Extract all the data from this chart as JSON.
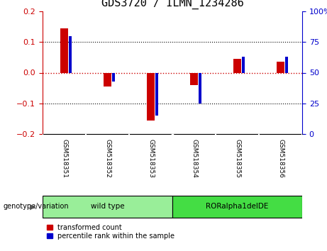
{
  "title": "GDS3720 / ILMN_1234286",
  "samples": [
    "GSM518351",
    "GSM518352",
    "GSM518353",
    "GSM518354",
    "GSM518355",
    "GSM518356"
  ],
  "red_values": [
    0.145,
    -0.045,
    -0.155,
    -0.04,
    0.045,
    0.035
  ],
  "blue_pct": [
    80,
    43,
    15,
    25,
    63,
    63
  ],
  "ylim": [
    -0.2,
    0.2
  ],
  "yticks_left": [
    -0.2,
    -0.1,
    0.0,
    0.1,
    0.2
  ],
  "yticks_right": [
    0,
    25,
    50,
    75,
    100
  ],
  "groups": [
    {
      "label": "wild type",
      "indices": [
        0,
        1,
        2
      ],
      "color": "#99EE99"
    },
    {
      "label": "RORalpha1delDE",
      "indices": [
        3,
        4,
        5
      ],
      "color": "#44DD44"
    }
  ],
  "genotype_label": "genotype/variation",
  "legend_red": "transformed count",
  "legend_blue": "percentile rank within the sample",
  "red_color": "#CC0000",
  "blue_color": "#0000CC",
  "bg_color": "#FFFFFF",
  "title_fontsize": 11,
  "axis_fontsize": 8,
  "tick_fontsize": 8
}
